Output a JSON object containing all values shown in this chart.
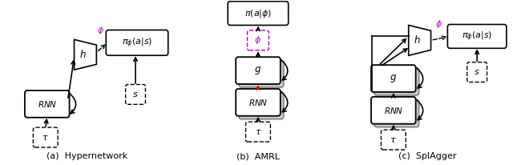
{
  "fig_width": 6.4,
  "fig_height": 2.06,
  "dpi": 100,
  "bg_color": "#ffffff",
  "text_color": "#000000",
  "magenta_color": "#bb00bb",
  "red_color": "#dd0000",
  "caption_a": "(a)  Hypernetwork",
  "caption_b": "(b)  AMRL",
  "caption_c": "(c)  SplAgger"
}
